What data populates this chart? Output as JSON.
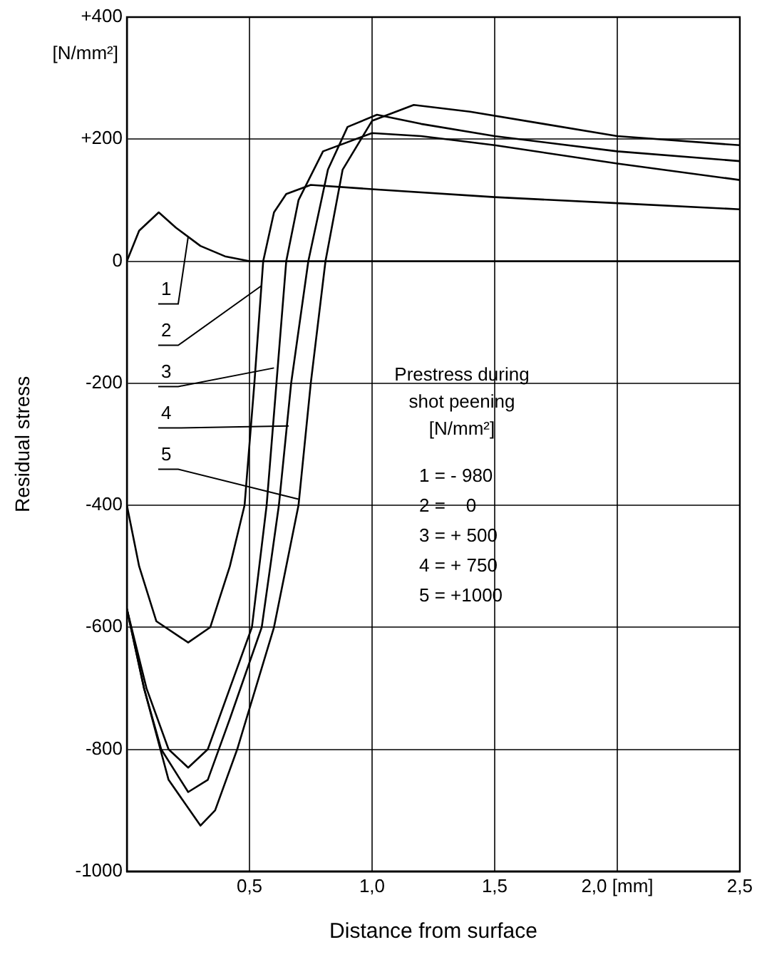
{
  "chart_data": {
    "type": "line",
    "xlabel": "Distance from surface",
    "ylabel": "Residual stress",
    "xlim": [
      0,
      2.5
    ],
    "xticks": [
      {
        "value": 0,
        "label": null
      },
      {
        "value": 0.5,
        "label": "0,5"
      },
      {
        "value": 1.0,
        "label": "1,0"
      },
      {
        "value": 1.5,
        "label": "1,5"
      },
      {
        "value": 2.0,
        "label": "2,0 [mm]"
      },
      {
        "value": 2.5,
        "label": "2,5"
      }
    ],
    "ylim": [
      -1000,
      400
    ],
    "yticks": [
      -1000,
      -800,
      -600,
      -400,
      -200,
      0,
      {
        "value": 200,
        "label": "+200"
      },
      {
        "value": 400,
        "label": "+400"
      }
    ],
    "grid": true,
    "legend": false,
    "marker": "none",
    "line_style": "solid",
    "series": [
      {
        "color": "#000000",
        "x": [
          0,
          0.05,
          0.13,
          0.2,
          0.3,
          0.4,
          0.5,
          1.0,
          1.5,
          2.0,
          2.5
        ],
        "values": [
          0,
          50,
          80,
          55,
          25,
          8,
          0,
          0,
          0,
          0,
          0
        ]
      },
      {
        "color": "#000000",
        "x": [
          0,
          0.05,
          0.12,
          0.25,
          0.34,
          0.42,
          0.48,
          0.52,
          0.556,
          0.6,
          0.65,
          0.75,
          1.0,
          1.5,
          2.0,
          2.5
        ],
        "values": [
          -400,
          -500,
          -590,
          -625,
          -600,
          -500,
          -400,
          -200,
          0,
          80,
          110,
          125,
          118,
          105,
          95,
          85
        ]
      },
      {
        "color": "#000000",
        "x": [
          0,
          0.08,
          0.17,
          0.25,
          0.33,
          0.42,
          0.51,
          0.57,
          0.61,
          0.65,
          0.7,
          0.8,
          1.0,
          1.2,
          1.5,
          2.0,
          2.5
        ],
        "values": [
          -570,
          -700,
          -800,
          -830,
          -800,
          -700,
          -600,
          -400,
          -200,
          0,
          100,
          180,
          210,
          205,
          190,
          160,
          133
        ]
      },
      {
        "color": "#000000",
        "x": [
          0,
          0.07,
          0.14,
          0.25,
          0.33,
          0.42,
          0.55,
          0.62,
          0.67,
          0.74,
          0.82,
          0.9,
          1.02,
          1.2,
          1.5,
          2.0,
          2.5
        ],
        "values": [
          -570,
          -700,
          -800,
          -870,
          -850,
          -750,
          -600,
          -400,
          -200,
          0,
          150,
          220,
          240,
          225,
          205,
          180,
          164
        ]
      },
      {
        "color": "#000000",
        "x": [
          0,
          0.07,
          0.17,
          0.3,
          0.36,
          0.45,
          0.6,
          0.7,
          0.75,
          0.81,
          0.88,
          1.0,
          1.17,
          1.4,
          1.7,
          2.0,
          2.5
        ],
        "values": [
          -570,
          -700,
          -850,
          -925,
          -900,
          -800,
          -600,
          -400,
          -200,
          0,
          150,
          230,
          256,
          245,
          225,
          205,
          190
        ]
      }
    ],
    "annotations": [
      "[N/mm²]",
      "Prestress during",
      "shot peening",
      "[N/mm²]",
      "1 = - 980",
      "2 =    0",
      "3 = + 500",
      "4 = + 750",
      "5 = +1000",
      {
        "text": "1",
        "x": 0.25,
        "y": 40
      },
      {
        "text": "2",
        "x": 0.55,
        "y": -40
      },
      {
        "text": "3",
        "x": 0.6,
        "y": -175
      },
      {
        "text": "4",
        "x": 0.66,
        "y": -270
      },
      {
        "text": "5",
        "x": 0.7,
        "y": -390
      }
    ]
  }
}
